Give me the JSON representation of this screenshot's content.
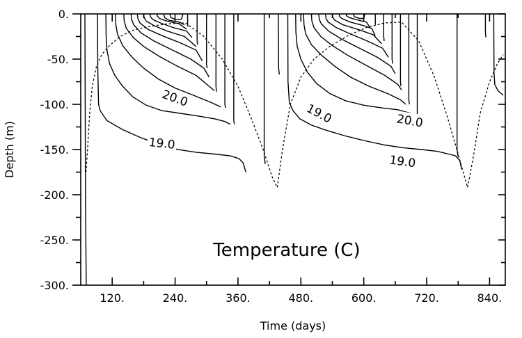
{
  "chart_data": {
    "type": "line",
    "title": "",
    "annotation": "Temperature (C)",
    "xlabel": "Time  (days)",
    "ylabel": "Depth  (m)",
    "xlim": [
      60,
      870
    ],
    "ylim": [
      -300,
      0
    ],
    "x_ticks": [
      120,
      240,
      360,
      480,
      600,
      720,
      840
    ],
    "x_tick_labels": [
      "120.",
      "240.",
      "360.",
      "480.",
      "600.",
      "720.",
      "840."
    ],
    "y_ticks": [
      0,
      -50,
      -100,
      -150,
      -200,
      -250,
      -300
    ],
    "y_tick_labels": [
      "0.",
      "-50.",
      "-100.",
      "-150.",
      "-200.",
      "-250.",
      "-300."
    ],
    "grid": false,
    "contour_labels": [
      {
        "text": "20.0",
        "x": 240,
        "y": -93,
        "rotate": 20
      },
      {
        "text": "19.0",
        "x": 215,
        "y": -143,
        "rotate": 6
      },
      {
        "text": "19.0",
        "x": 515,
        "y": -110,
        "rotate": 28
      },
      {
        "text": "20.0",
        "x": 688,
        "y": -118,
        "rotate": 10
      },
      {
        "text": "19.0",
        "x": 674,
        "y": -163,
        "rotate": 8
      }
    ],
    "series": [
      {
        "style": "dotted",
        "x": [
          70,
          73,
          77,
          82,
          90,
          100,
          115,
          135,
          160,
          190,
          225,
          260,
          295,
          330,
          360,
          385,
          408,
          425,
          435,
          445,
          460,
          480,
          505,
          535,
          570,
          605,
          640,
          672,
          705,
          735,
          760,
          780,
          798,
          810,
          822,
          840,
          855,
          866
        ],
        "y": [
          -175,
          -150,
          -110,
          -80,
          -58,
          -45,
          -35,
          -25,
          -18,
          -14,
          -11,
          -10,
          -25,
          -50,
          -80,
          -115,
          -150,
          -180,
          -192,
          -150,
          -100,
          -70,
          -50,
          -36,
          -24,
          -15,
          -10,
          -9,
          -30,
          -70,
          -115,
          -155,
          -192,
          -155,
          -110,
          -75,
          -55,
          -45
        ]
      },
      {
        "style": "solid",
        "x": [
          68,
          68.5,
          69,
          70.5
        ],
        "y": [
          0,
          -100,
          -200,
          -300
        ]
      },
      {
        "style": "solid",
        "x": [
          92,
          92.5,
          94,
          97,
          110,
          140,
          175,
          210,
          245,
          280,
          315,
          345,
          362,
          370,
          375
        ],
        "y": [
          0,
          -60,
          -100,
          -107,
          -118,
          -128,
          -137,
          -144,
          -150,
          -153,
          -155,
          -157,
          -160,
          -165,
          -175
        ]
      },
      {
        "style": "solid",
        "x": [
          108,
          108.5,
          110,
          115,
          125,
          140,
          160,
          185,
          215,
          250,
          285,
          315,
          335,
          345
        ],
        "y": [
          0,
          -25,
          -40,
          -55,
          -68,
          -80,
          -92,
          -101,
          -107,
          -110,
          -113,
          -116,
          -119,
          -122
        ]
      },
      {
        "style": "solid",
        "x": [
          126,
          127,
          130,
          140,
          158,
          180,
          208,
          240,
          275,
          305,
          320,
          327
        ],
        "y": [
          0,
          -12,
          -22,
          -35,
          -48,
          -60,
          -72,
          -82,
          -90,
          -97,
          -101,
          -103
        ]
      },
      {
        "style": "solid",
        "x": [
          142,
          143,
          147,
          160,
          180,
          210,
          245,
          280,
          305,
          315
        ],
        "y": [
          0,
          -8,
          -16,
          -26,
          -36,
          -47,
          -58,
          -68,
          -80,
          -85
        ]
      },
      {
        "style": "solid",
        "x": [
          156,
          157,
          161,
          175,
          200,
          235,
          270,
          295,
          305
        ],
        "y": [
          0,
          -6,
          -12,
          -21,
          -30,
          -40,
          -50,
          -60,
          -70
        ]
      },
      {
        "style": "solid",
        "x": [
          168,
          169,
          173,
          188,
          215,
          250,
          280,
          292
        ],
        "y": [
          0,
          -5,
          -10,
          -17,
          -24,
          -32,
          -40,
          -52
        ]
      },
      {
        "style": "solid",
        "x": [
          180,
          181,
          185,
          200,
          225,
          258,
          280
        ],
        "y": [
          0,
          -4,
          -8,
          -13,
          -19,
          -25,
          -36
        ]
      },
      {
        "style": "solid",
        "x": [
          192,
          193,
          197,
          212,
          236,
          262,
          272
        ],
        "y": [
          0,
          -3,
          -6,
          -10,
          -15,
          -19,
          -26
        ]
      },
      {
        "style": "solid",
        "x": [
          205,
          206,
          210,
          225,
          248,
          262
        ],
        "y": [
          0,
          -2,
          -5,
          -8,
          -11,
          -17
        ]
      },
      {
        "style": "solid",
        "x": [
          218,
          220,
          228,
          248,
          258
        ],
        "y": [
          0,
          -4,
          -7,
          -9,
          -12
        ]
      },
      {
        "style": "solid",
        "x": [
          230,
          232,
          240,
          252,
          255
        ],
        "y": [
          0,
          -4,
          -6,
          -6,
          0
        ]
      },
      {
        "style": "solid",
        "x": [
          264,
          264,
          264.5
        ],
        "y": [
          0,
          -12,
          -14
        ]
      },
      {
        "style": "solid",
        "x": [
          282,
          282,
          283
        ],
        "y": [
          0,
          -30,
          -34
        ]
      },
      {
        "style": "solid",
        "x": [
          300,
          300,
          301
        ],
        "y": [
          0,
          -55,
          -60
        ]
      },
      {
        "style": "solid",
        "x": [
          318,
          318,
          319
        ],
        "y": [
          0,
          -80,
          -86
        ]
      },
      {
        "style": "solid",
        "x": [
          335,
          335,
          336
        ],
        "y": [
          0,
          -100,
          -104
        ]
      },
      {
        "style": "solid",
        "x": [
          352,
          352,
          353
        ],
        "y": [
          0,
          -118,
          -122
        ]
      },
      {
        "style": "solid",
        "x": [
          410,
          410,
          412
        ],
        "y": [
          0,
          -158,
          -166
        ]
      },
      {
        "style": "solid",
        "x": [
          437,
          437.5,
          439
        ],
        "y": [
          0,
          -60,
          -67
        ]
      },
      {
        "style": "solid",
        "x": [
          455,
          455.5,
          458,
          465,
          478,
          500,
          530,
          565,
          600,
          640,
          675,
          710,
          740,
          762,
          775,
          783,
          787
        ],
        "y": [
          0,
          -75,
          -98,
          -107,
          -116,
          -123,
          -129,
          -135,
          -140,
          -145,
          -148,
          -150,
          -152,
          -155,
          -157,
          -162,
          -172
        ]
      },
      {
        "style": "solid",
        "x": [
          470,
          470.5,
          473,
          480,
          492,
          510,
          535,
          565,
          600,
          635,
          665,
          690,
          700
        ],
        "y": [
          0,
          -20,
          -36,
          -50,
          -64,
          -77,
          -88,
          -96,
          -101,
          -104,
          -106,
          -110,
          -115
        ]
      },
      {
        "style": "solid",
        "x": [
          485,
          486,
          489,
          500,
          520,
          545,
          575,
          610,
          645,
          670,
          680
        ],
        "y": [
          0,
          -12,
          -22,
          -34,
          -46,
          -58,
          -70,
          -80,
          -88,
          -95,
          -100
        ]
      },
      {
        "style": "solid",
        "x": [
          500,
          501,
          505,
          518,
          540,
          570,
          605,
          640,
          665,
          672
        ],
        "y": [
          0,
          -8,
          -15,
          -25,
          -35,
          -46,
          -57,
          -68,
          -78,
          -84
        ]
      },
      {
        "style": "solid",
        "x": [
          514,
          515,
          519,
          533,
          558,
          592,
          626,
          652,
          660
        ],
        "y": [
          0,
          -6,
          -11,
          -19,
          -28,
          -38,
          -48,
          -58,
          -66
        ]
      },
      {
        "style": "solid",
        "x": [
          527,
          528,
          532,
          547,
          574,
          607,
          636,
          647
        ],
        "y": [
          0,
          -5,
          -9,
          -15,
          -22,
          -30,
          -38,
          -48
        ]
      },
      {
        "style": "solid",
        "x": [
          540,
          541,
          545,
          560,
          588,
          618,
          634
        ],
        "y": [
          0,
          -4,
          -7,
          -12,
          -17,
          -23,
          -33
        ]
      },
      {
        "style": "solid",
        "x": [
          553,
          554,
          558,
          574,
          600,
          615,
          622
        ],
        "y": [
          0,
          -3,
          -5,
          -9,
          -13,
          -16,
          -24
        ]
      },
      {
        "style": "solid",
        "x": [
          566,
          567,
          572,
          590,
          605,
          612
        ],
        "y": [
          0,
          -2,
          -4,
          -7,
          -9,
          -15
        ]
      },
      {
        "style": "solid",
        "x": [
          580,
          582,
          592,
          600,
          602
        ],
        "y": [
          0,
          -3,
          -5,
          -5,
          0
        ]
      },
      {
        "style": "solid",
        "x": [
          622,
          622,
          622.5
        ],
        "y": [
          0,
          -10,
          -12
        ]
      },
      {
        "style": "solid",
        "x": [
          638,
          638,
          639
        ],
        "y": [
          0,
          -25,
          -30
        ]
      },
      {
        "style": "solid",
        "x": [
          654,
          654,
          655
        ],
        "y": [
          0,
          -50,
          -55
        ]
      },
      {
        "style": "solid",
        "x": [
          670,
          670,
          671
        ],
        "y": [
          0,
          -75,
          -80
        ]
      },
      {
        "style": "solid",
        "x": [
          686,
          686,
          687
        ],
        "y": [
          0,
          -95,
          -100
        ]
      },
      {
        "style": "solid",
        "x": [
          702,
          702,
          703
        ],
        "y": [
          0,
          -112,
          -116
        ]
      },
      {
        "style": "solid",
        "x": [
          778,
          778,
          780
        ],
        "y": [
          0,
          -150,
          -158
        ]
      },
      {
        "style": "solid",
        "x": [
          832,
          832,
          833
        ],
        "y": [
          0,
          -20,
          -26
        ]
      },
      {
        "style": "solid",
        "x": [
          848,
          848.5,
          850,
          856,
          862,
          866
        ],
        "y": [
          0,
          -65,
          -78,
          -85,
          -88,
          -90
        ]
      }
    ]
  }
}
